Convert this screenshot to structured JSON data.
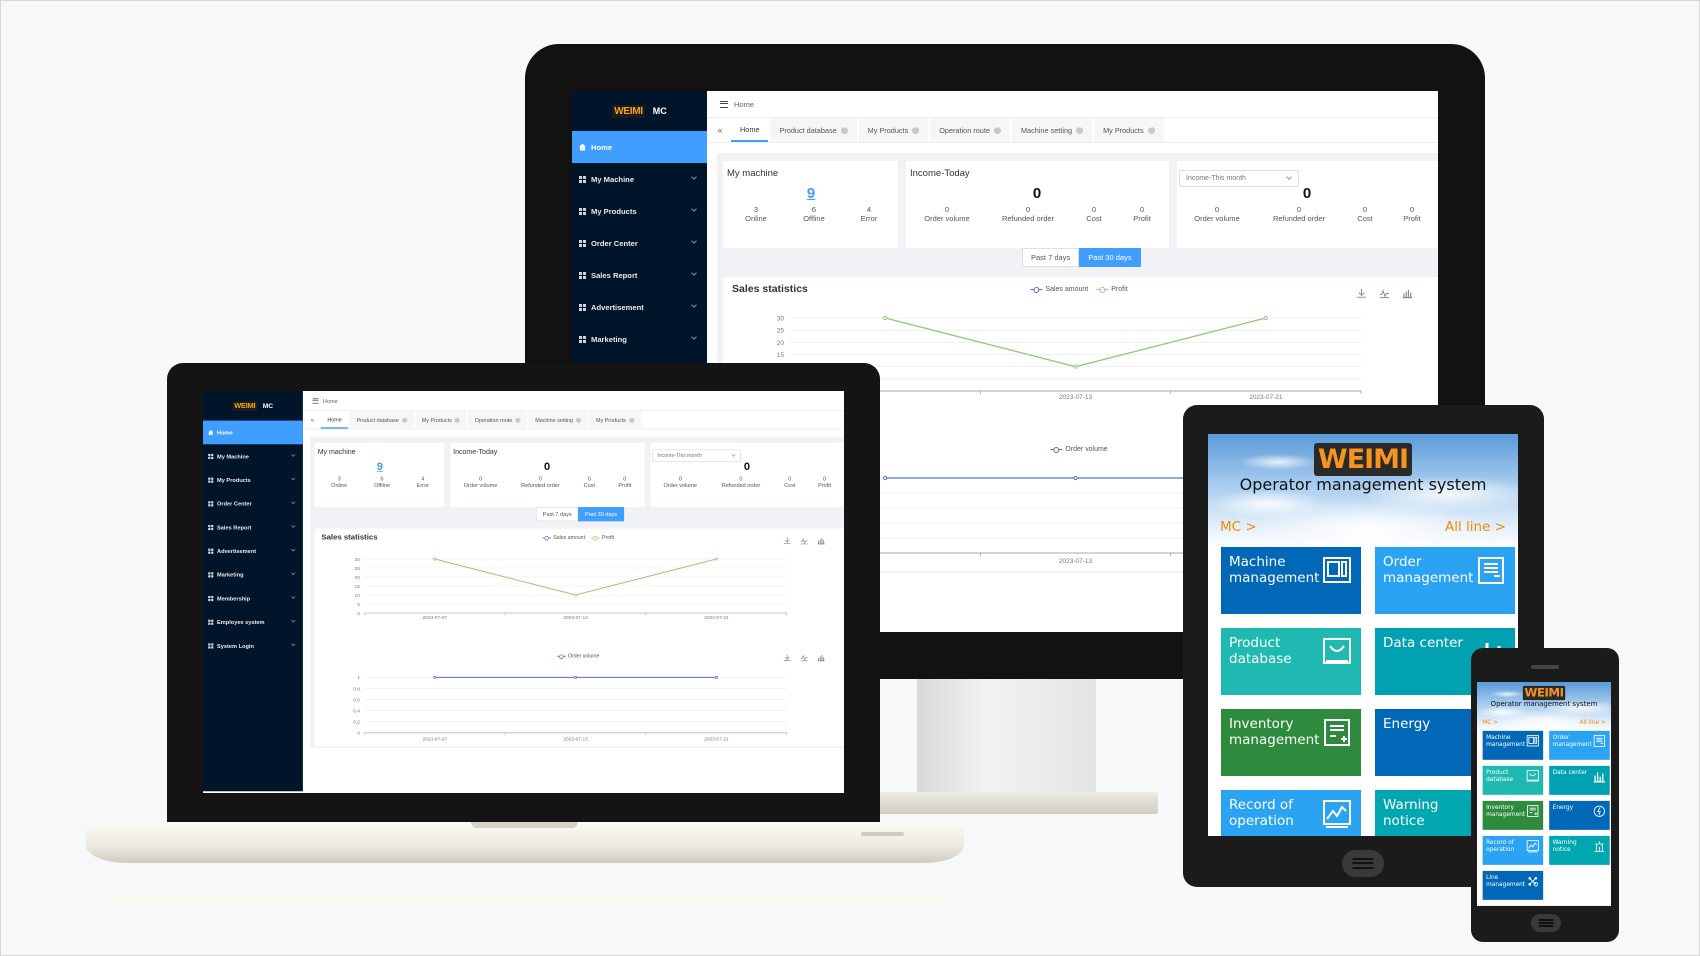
{
  "dashboard": {
    "logo": {
      "brand": "WEIMI",
      "suffix": "MC"
    },
    "sidebar": [
      {
        "label": "Home",
        "icon": "home-icon",
        "active": true
      },
      {
        "label": "My Machine",
        "icon": "grid-icon"
      },
      {
        "label": "My Products",
        "icon": "grid-icon"
      },
      {
        "label": "Order Center",
        "icon": "grid-icon"
      },
      {
        "label": "Sales Report",
        "icon": "grid-icon"
      },
      {
        "label": "Advertisement",
        "icon": "grid-icon"
      },
      {
        "label": "Marketing",
        "icon": "grid-icon"
      },
      {
        "label": "Membership",
        "icon": "grid-icon"
      },
      {
        "label": "Employee system",
        "icon": "grid-icon"
      },
      {
        "label": "System Login",
        "icon": "grid-icon"
      }
    ],
    "header": {
      "breadcrumb": "Home"
    },
    "tabs": [
      {
        "label": "Home",
        "active": true
      },
      {
        "label": "Product database"
      },
      {
        "label": "My Products"
      },
      {
        "label": "Operation route"
      },
      {
        "label": "Machine setting"
      },
      {
        "label": "My Products"
      }
    ],
    "my_machine": {
      "title": "My machine",
      "total": "9",
      "stats": [
        {
          "value": "3",
          "label": "Online"
        },
        {
          "value": "6",
          "label": "Offline"
        },
        {
          "value": "4",
          "label": "Error"
        }
      ]
    },
    "income_today": {
      "title": "Income-Today",
      "total": "0",
      "stats": [
        {
          "value": "0",
          "label": "Order volume"
        },
        {
          "value": "0",
          "label": "Refunded order"
        },
        {
          "value": "0",
          "label": "Cost"
        },
        {
          "value": "0",
          "label": "Profit"
        }
      ]
    },
    "income_period": {
      "selected": "Income-This month",
      "total": "0",
      "stats": [
        {
          "value": "0",
          "label": "Order volume"
        },
        {
          "value": "0",
          "label": "Refunded order"
        },
        {
          "value": "0",
          "label": "Cost"
        },
        {
          "value": "0",
          "label": "Profit"
        }
      ]
    },
    "range_toggle": {
      "options": [
        "Past 7 days",
        "Past 30 days"
      ],
      "active": "Past 30 days"
    },
    "sales_statistics": {
      "title": "Sales statistics"
    }
  },
  "chart_data": [
    {
      "type": "line",
      "categories": [
        "2023-07-07",
        "2023-07-13",
        "2023-07-21"
      ],
      "legend": [
        "Sales amount",
        "Profit"
      ],
      "series": [
        {
          "name": "Profit",
          "values": [
            30,
            10,
            30
          ],
          "color": "#91cc75"
        }
      ],
      "legend_colors": [
        "#5470c6",
        "#91cc75"
      ],
      "ylim": [
        0,
        30
      ],
      "yticks": [
        0,
        5,
        10,
        15,
        20,
        25,
        30
      ],
      "grid": true
    },
    {
      "type": "line",
      "categories": [
        "2023-07-07",
        "2023-07-13",
        "2023-07-21"
      ],
      "legend": [
        "Order volume"
      ],
      "series": [
        {
          "name": "Order volume",
          "values": [
            1,
            1,
            1
          ],
          "color": "#5470c6"
        }
      ],
      "legend_colors": [
        "#5470c6"
      ],
      "ylim": [
        0,
        1
      ],
      "yticks": [
        0,
        0.2,
        0.4,
        0.6,
        0.8,
        1
      ],
      "grid": true
    }
  ],
  "mobile": {
    "logo": "WEIMI",
    "title": "Operator management system",
    "left_link": "MC >",
    "right_link": "All line >",
    "tiles": [
      {
        "label": "Machine management",
        "icon": "machine-icon",
        "color": "#0068b7"
      },
      {
        "label": "Order management",
        "icon": "order-icon",
        "color": "#2aa3f2"
      },
      {
        "label": "Product database",
        "icon": "product-icon",
        "color": "#1fb9b1"
      },
      {
        "label": "Data center",
        "icon": "bar-chart-icon",
        "color": "#00a2b2"
      },
      {
        "label": "Inventory management",
        "icon": "inventory-icon",
        "color": "#2e8b3e"
      },
      {
        "label": "Energy",
        "icon": "energy-icon",
        "color": "#0068b7"
      },
      {
        "label": "Record of operation",
        "icon": "trend-icon",
        "color": "#2aa3f2"
      },
      {
        "label": "Warning notice",
        "icon": "alarm-icon",
        "color": "#00a6b0"
      },
      {
        "label": "Line management",
        "icon": "network-icon",
        "color": "#0068b7"
      }
    ]
  },
  "colors": {
    "primary": "#409eff",
    "sidebar": "#001529",
    "logo": "#f7941d",
    "link": "#f08c00"
  }
}
